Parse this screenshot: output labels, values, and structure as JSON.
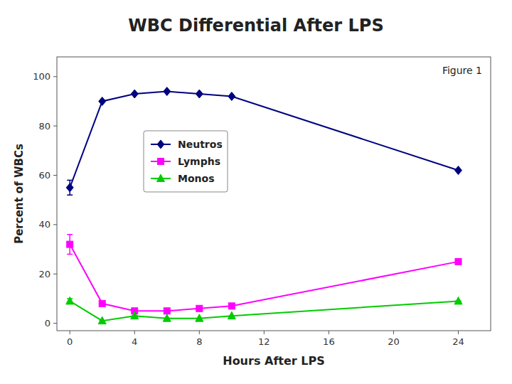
{
  "chart_data": {
    "type": "line",
    "title": "WBC Differential After LPS",
    "xlabel": "Hours After LPS",
    "ylabel": "Percent of WBCs",
    "annotations": [
      "Figure 1"
    ],
    "x": [
      0,
      2,
      4,
      6,
      8,
      10,
      24
    ],
    "series": [
      {
        "name": "Neutros",
        "color": "#000080",
        "marker": "diamond",
        "values": [
          55,
          90,
          93,
          94,
          93,
          92,
          62
        ],
        "errors": [
          3,
          0,
          0,
          0,
          0,
          0,
          0
        ]
      },
      {
        "name": "Lymphs",
        "color": "#ff00ff",
        "marker": "square",
        "values": [
          32,
          8,
          5,
          5,
          6,
          7,
          25
        ],
        "errors": [
          4,
          0,
          0,
          0,
          0,
          0,
          0
        ]
      },
      {
        "name": "Monos",
        "color": "#00cc00",
        "marker": "triangle",
        "values": [
          9,
          1,
          3,
          2,
          2,
          3,
          9
        ],
        "errors": [
          1,
          0,
          0,
          0,
          0,
          0,
          0
        ]
      }
    ],
    "xlim": [
      -0.8,
      26
    ],
    "ylim": [
      -3,
      108
    ],
    "xticks": [
      0,
      4,
      8,
      12,
      16,
      20,
      24
    ],
    "yticks": [
      0,
      20,
      40,
      60,
      80,
      100
    ],
    "grid": false,
    "legend": "upper left"
  }
}
